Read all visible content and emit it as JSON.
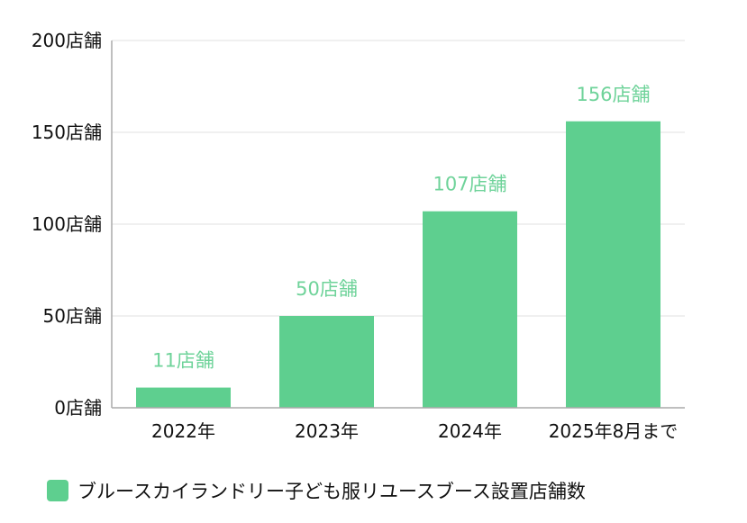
{
  "chart_data": {
    "type": "bar",
    "categories": [
      "2022年",
      "2023年",
      "2024年",
      "2025年8月まで"
    ],
    "series": [
      {
        "name": "ブルースカイランドリー子ども服リユースブース設置店舗数",
        "values": [
          11,
          50,
          107,
          156
        ]
      }
    ],
    "data_labels": [
      "11店舗",
      "50店舗",
      "107店舗",
      "156店舗"
    ],
    "y_ticks": [
      0,
      50,
      100,
      150,
      200
    ],
    "y_tick_labels": [
      "0店舗",
      "50店舗",
      "100店舗",
      "150店舗",
      "200店舗"
    ],
    "ylim": [
      0,
      200
    ],
    "grid": true,
    "legend": "bottom-left",
    "title": "",
    "xlabel": "",
    "ylabel": ""
  },
  "colors": {
    "bar": "#5ecf8f",
    "label": "#6fd39a",
    "grid": "#e2e2e2",
    "axis": "#aaaaaa"
  }
}
